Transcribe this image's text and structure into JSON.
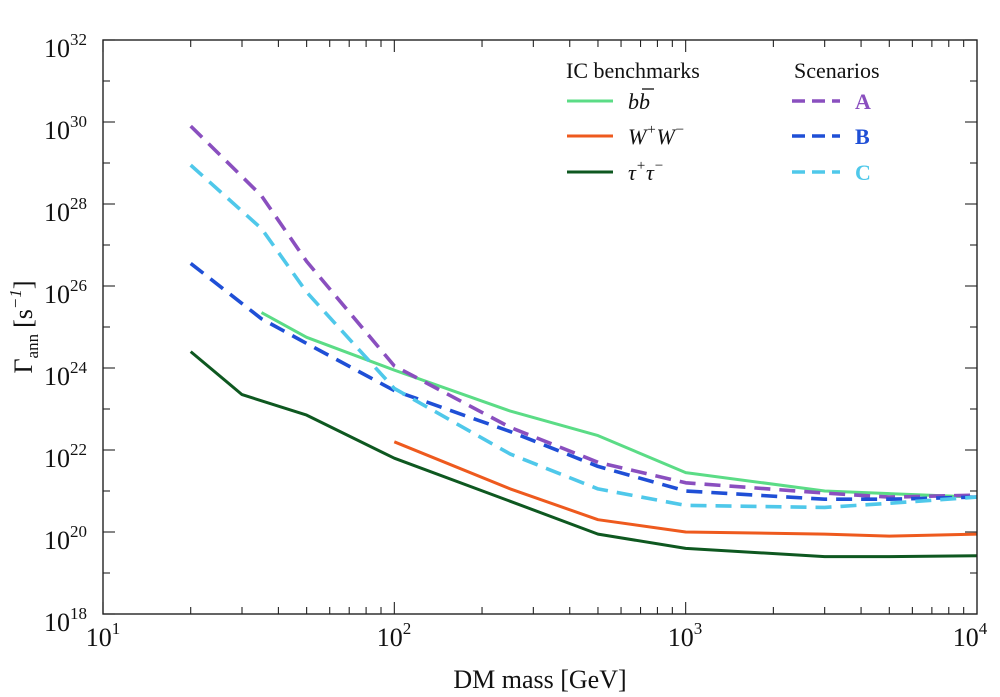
{
  "chart_data": {
    "type": "line",
    "title": "",
    "xlabel": "DM mass [GeV]",
    "ylabel_symbol": "Γ",
    "ylabel_sub": "ann",
    "ylabel_unit": "[s",
    "ylabel_unit_exp": "−1",
    "ylabel_unit_close": "]",
    "xscale": "log",
    "yscale": "log",
    "xlim": [
      10,
      10000
    ],
    "ylim": [
      1e+18,
      1e+32
    ],
    "x_ticks": [
      {
        "value": 10,
        "base": "10",
        "exp": "1"
      },
      {
        "value": 100,
        "base": "10",
        "exp": "2"
      },
      {
        "value": 1000,
        "base": "10",
        "exp": "3"
      },
      {
        "value": 10000,
        "base": "10",
        "exp": "4"
      }
    ],
    "y_ticks": [
      {
        "value": 18,
        "base": "10",
        "exp": "18"
      },
      {
        "value": 20,
        "base": "10",
        "exp": "20"
      },
      {
        "value": 22,
        "base": "10",
        "exp": "22"
      },
      {
        "value": 24,
        "base": "10",
        "exp": "24"
      },
      {
        "value": 26,
        "base": "10",
        "exp": "26"
      },
      {
        "value": 28,
        "base": "10",
        "exp": "28"
      },
      {
        "value": 30,
        "base": "10",
        "exp": "30"
      },
      {
        "value": 32,
        "base": "10",
        "exp": "32"
      }
    ],
    "legend": {
      "placement": "top-right",
      "benchmarks_header": "IC benchmarks",
      "scenarios_header": "Scenarios"
    },
    "series": [
      {
        "name": "b b̄",
        "label_main": "b",
        "label_bar": "b",
        "group": "benchmark",
        "color": "#5bdc86",
        "dash": false,
        "x": [
          35,
          50,
          100,
          250,
          500,
          1000,
          3000,
          10000
        ],
        "y_log10": [
          25.35,
          24.75,
          23.95,
          22.95,
          22.35,
          21.45,
          21.0,
          20.85
        ]
      },
      {
        "name": "W+W−",
        "label_main": "W",
        "sup1": "+",
        "label_mid": "W",
        "sup2": "−",
        "group": "benchmark",
        "color": "#ee5a1e",
        "dash": false,
        "x": [
          100,
          250,
          500,
          1000,
          3000,
          5000,
          10000
        ],
        "y_log10": [
          22.2,
          21.05,
          20.3,
          20.0,
          19.95,
          19.9,
          19.95
        ]
      },
      {
        "name": "τ+τ−",
        "label_main": "τ",
        "sup1": "+",
        "label_mid": "τ",
        "sup2": "−",
        "group": "benchmark",
        "color": "#0e5820",
        "dash": false,
        "x": [
          20,
          30,
          50,
          100,
          250,
          500,
          1000,
          3000,
          5000,
          10000
        ],
        "y_log10": [
          24.4,
          23.35,
          22.85,
          21.8,
          20.75,
          19.95,
          19.6,
          19.4,
          19.4,
          19.42
        ]
      },
      {
        "name": "A",
        "group": "scenario",
        "color": "#8a4fbf",
        "dash": true,
        "x": [
          20,
          35,
          50,
          100,
          250,
          500,
          1000,
          3000,
          5000,
          10000
        ],
        "y_log10": [
          29.9,
          28.2,
          26.6,
          24.05,
          22.55,
          21.7,
          21.2,
          20.95,
          20.85,
          20.9
        ]
      },
      {
        "name": "B",
        "group": "scenario",
        "color": "#1f4fd6",
        "dash": true,
        "x": [
          20,
          35,
          50,
          100,
          250,
          500,
          1000,
          3000,
          5000,
          10000
        ],
        "y_log10": [
          26.55,
          25.2,
          24.6,
          23.45,
          22.45,
          21.6,
          21.0,
          20.8,
          20.8,
          20.85
        ]
      },
      {
        "name": "C",
        "group": "scenario",
        "color": "#4fc8ea",
        "dash": true,
        "x": [
          20,
          35,
          50,
          100,
          250,
          500,
          1000,
          3000,
          5000,
          10000
        ],
        "y_log10": [
          28.95,
          27.4,
          25.85,
          23.5,
          21.9,
          21.05,
          20.65,
          20.6,
          20.7,
          20.85
        ]
      }
    ]
  }
}
